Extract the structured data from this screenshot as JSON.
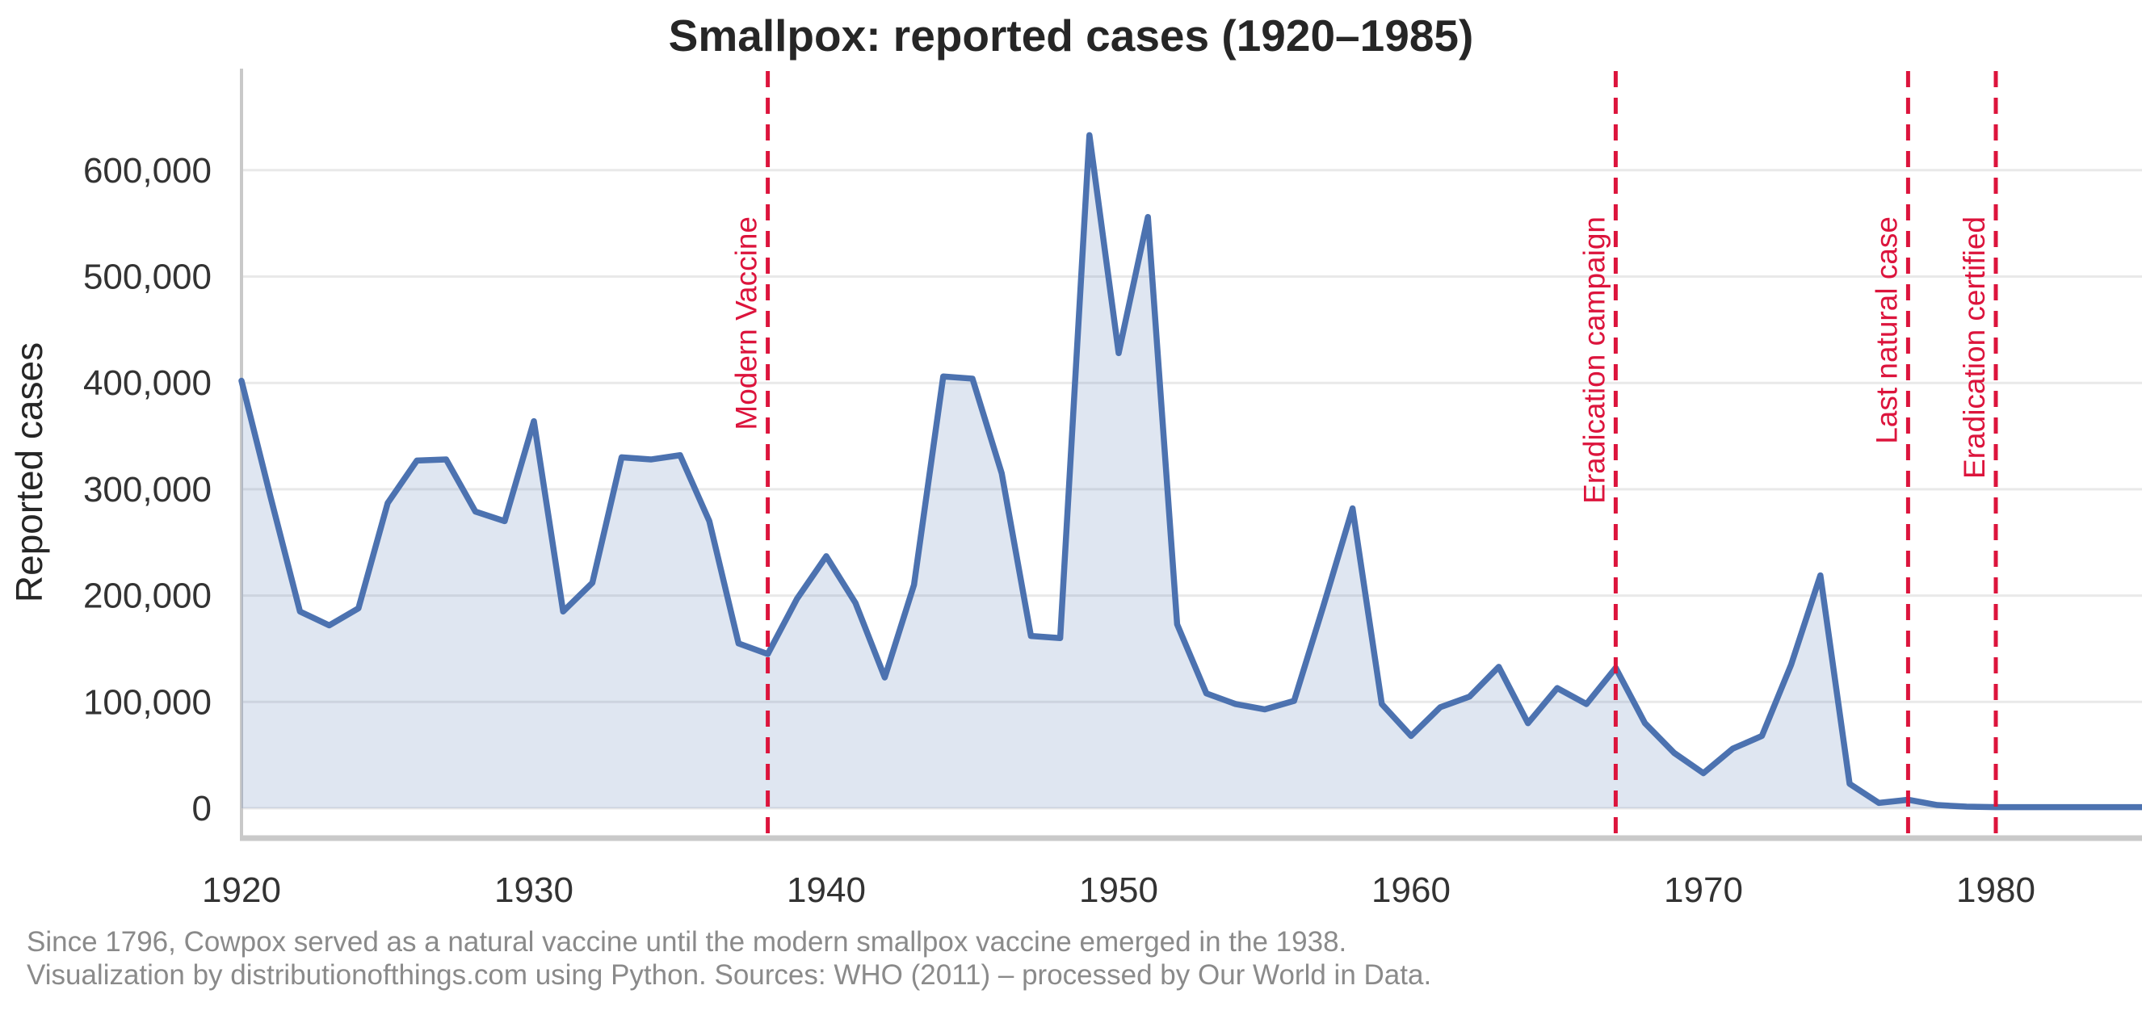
{
  "title": "Smallpox: reported cases (1920–1985)",
  "y_axis": {
    "label": "Reported cases",
    "tick_values": [
      0,
      100000,
      200000,
      300000,
      400000,
      500000,
      600000
    ],
    "tick_labels": [
      "0",
      "100,000",
      "200,000",
      "300,000",
      "400,000",
      "500,000",
      "600,000"
    ]
  },
  "x_axis": {
    "tick_values": [
      1920,
      1930,
      1940,
      1950,
      1960,
      1970,
      1980
    ],
    "tick_labels": [
      "1920",
      "1930",
      "1940",
      "1950",
      "1960",
      "1970",
      "1980"
    ]
  },
  "events": [
    {
      "year": 1938,
      "label": "Modern Vaccine"
    },
    {
      "year": 1967,
      "label": "Eradication campaign"
    },
    {
      "year": 1977,
      "label": "Last natural case"
    },
    {
      "year": 1980,
      "label": "Eradication certified"
    }
  ],
  "footer": {
    "line1": "Since 1796, Cowpox served as a natural vaccine until the modern smallpox vaccine emerged in the 1938.",
    "line2": "Visualization by distributionofthings.com using Python. Sources: WHO (2011) – processed by Our World in Data."
  },
  "colors": {
    "line": "#4C72B0",
    "fill": "rgba(76,114,176,0.18)",
    "event_line": "#DC143C",
    "grid": "#e9e9e9",
    "spine": "#c9c9c9",
    "title_text": "#262626",
    "tick_text": "#333333",
    "footer_text": "#8a8a8a"
  },
  "chart_data": {
    "type": "area",
    "title": "Smallpox: reported cases (1920–1985)",
    "xlabel": "",
    "ylabel": "Reported cases",
    "xlim": [
      1920,
      1985
    ],
    "ylim": [
      0,
      650000
    ],
    "grid": "horizontal",
    "legend": "none",
    "x": [
      1920,
      1921,
      1922,
      1923,
      1924,
      1925,
      1926,
      1927,
      1928,
      1929,
      1930,
      1931,
      1932,
      1933,
      1934,
      1935,
      1936,
      1937,
      1938,
      1939,
      1940,
      1941,
      1942,
      1943,
      1944,
      1945,
      1946,
      1947,
      1948,
      1949,
      1950,
      1951,
      1952,
      1953,
      1954,
      1955,
      1956,
      1957,
      1958,
      1959,
      1960,
      1961,
      1962,
      1963,
      1964,
      1965,
      1966,
      1967,
      1968,
      1969,
      1970,
      1971,
      1972,
      1973,
      1974,
      1975,
      1976,
      1977,
      1978,
      1979,
      1980,
      1981,
      1982,
      1983,
      1984,
      1985
    ],
    "values": [
      402000,
      292000,
      185000,
      172000,
      188000,
      287000,
      327000,
      328000,
      279000,
      270000,
      364000,
      185000,
      212000,
      330000,
      328000,
      332000,
      270000,
      155000,
      145000,
      197000,
      237000,
      193000,
      123000,
      210000,
      406000,
      404000,
      315000,
      162000,
      160000,
      633000,
      428000,
      556000,
      173000,
      108000,
      98000,
      93000,
      101000,
      190000,
      282000,
      98000,
      68000,
      95000,
      105000,
      133000,
      80000,
      113000,
      98000,
      132000,
      80000,
      52000,
      33000,
      56000,
      68000,
      135000,
      219000,
      23000,
      5000,
      8000,
      3000,
      1500,
      1000,
      1000,
      1000,
      1000,
      1000,
      1000
    ],
    "annotations": [
      {
        "x": 1938,
        "label": "Modern Vaccine"
      },
      {
        "x": 1967,
        "label": "Eradication campaign"
      },
      {
        "x": 1977,
        "label": "Last natural case"
      },
      {
        "x": 1980,
        "label": "Eradication certified"
      }
    ]
  }
}
